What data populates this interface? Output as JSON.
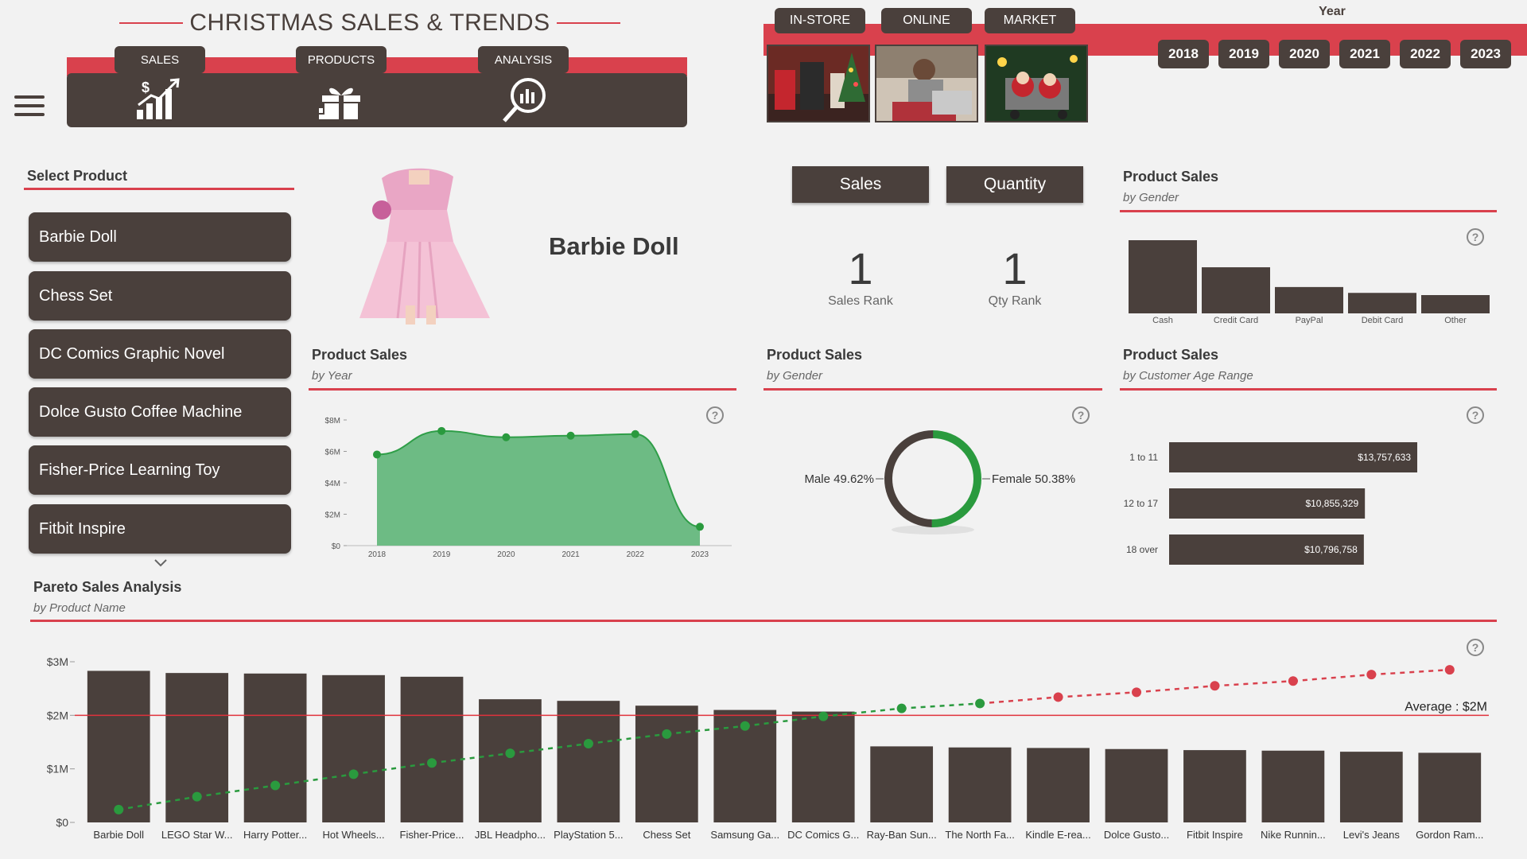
{
  "header": {
    "title": "CHRISTMAS SALES & TRENDS"
  },
  "nav": {
    "tabs": [
      "SALES",
      "PRODUCTS",
      "ANALYSIS"
    ]
  },
  "channels": {
    "tabs": [
      "IN-STORE",
      "ONLINE",
      "MARKET"
    ]
  },
  "year_filter": {
    "label": "Year",
    "years": [
      "2018",
      "2019",
      "2020",
      "2021",
      "2022",
      "2023"
    ]
  },
  "product_selector": {
    "title": "Select Product",
    "items": [
      "Barbie Doll",
      "Chess Set",
      "DC Comics Graphic Novel",
      "Dolce Gusto Coffee Machine",
      "Fisher-Price Learning Toy",
      "Fitbit Inspire"
    ]
  },
  "selected_product": {
    "name": "Barbie Doll"
  },
  "toggles": {
    "sales": "Sales",
    "quantity": "Quantity"
  },
  "kpis": {
    "sales_rank": {
      "value": "1",
      "label": "Sales Rank"
    },
    "qty_rank": {
      "value": "1",
      "label": "Qty Rank"
    }
  },
  "cards": {
    "payment": {
      "title": "Product Sales",
      "subtitle": "by Gender"
    },
    "year": {
      "title": "Product Sales",
      "subtitle": "by Year"
    },
    "gender": {
      "title": "Product Sales",
      "subtitle": "by Gender"
    },
    "age": {
      "title": "Product Sales",
      "subtitle": "by Customer Age Range"
    },
    "pareto": {
      "title": "Pareto Sales Analysis",
      "subtitle": "by Product Name"
    }
  },
  "help_glyph": "?",
  "chart_data": [
    {
      "id": "payment",
      "type": "bar",
      "categories": [
        "Cash",
        "Credit Card",
        "PayPal",
        "Debit Card",
        "Other"
      ],
      "values": [
        100,
        63,
        36,
        28,
        25
      ],
      "colors": {
        "bar": "#4a403c"
      }
    },
    {
      "id": "year",
      "type": "area",
      "x": [
        "2018",
        "2019",
        "2020",
        "2021",
        "2022",
        "2023"
      ],
      "values": [
        5.8,
        7.3,
        6.9,
        7.0,
        7.1,
        1.2
      ],
      "yticks": [
        "$0",
        "$2M",
        "$4M",
        "$6M",
        "$8M"
      ],
      "ylim": [
        0,
        8
      ],
      "colors": {
        "fill": "#6dbb84",
        "line": "#2f9e48",
        "point": "#2a9a3e"
      }
    },
    {
      "id": "gender",
      "type": "pie",
      "labels": [
        "Male 49.62%",
        "Female 50.38%"
      ],
      "values": [
        49.62,
        50.38
      ],
      "colors": {
        "male": "#4a403c",
        "female": "#2a9a3e"
      }
    },
    {
      "id": "age",
      "type": "bar",
      "categories": [
        "1 to 11",
        "12 to 17",
        "18 over"
      ],
      "values": [
        13757633,
        10855329,
        10796758
      ],
      "labels": [
        "$13,757,633",
        "$10,855,329",
        "$10,796,758"
      ],
      "colors": {
        "bar": "#4a403c"
      }
    },
    {
      "id": "pareto",
      "type": "bar",
      "categories": [
        "Barbie Doll",
        "LEGO Star W...",
        "Harry Potter...",
        "Hot Wheels...",
        "Fisher-Price...",
        "JBL Headpho...",
        "PlayStation 5...",
        "Chess Set",
        "Samsung Ga...",
        "DC Comics G...",
        "Ray-Ban Sun...",
        "The North Fa...",
        "Kindle E-rea...",
        "Dolce Gusto...",
        "Fitbit Inspire",
        "Nike Runnin...",
        "Levi's Jeans",
        "Gordon Ram..."
      ],
      "values": [
        2.83,
        2.79,
        2.78,
        2.75,
        2.72,
        2.3,
        2.27,
        2.18,
        2.1,
        2.07,
        1.42,
        1.4,
        1.39,
        1.37,
        1.35,
        1.34,
        1.32,
        1.3
      ],
      "cumulative_share": [
        0.08,
        0.16,
        0.23,
        0.3,
        0.37,
        0.43,
        0.49,
        0.55,
        0.6,
        0.66,
        0.71,
        0.74,
        0.78,
        0.81,
        0.85,
        0.88,
        0.92,
        0.95
      ],
      "cumulative_colors": [
        "#2a9a3e",
        "#2a9a3e",
        "#2a9a3e",
        "#2a9a3e",
        "#2a9a3e",
        "#2a9a3e",
        "#2a9a3e",
        "#2a9a3e",
        "#2a9a3e",
        "#2a9a3e",
        "#2a9a3e",
        "#2a9a3e",
        "#d9414d",
        "#d9414d",
        "#d9414d",
        "#d9414d",
        "#d9414d",
        "#d9414d"
      ],
      "yticks": [
        "$0",
        "$1M",
        "$2M",
        "$3M"
      ],
      "ylim": [
        0,
        3
      ],
      "average": 2.0,
      "average_label": "Average : $2M",
      "colors": {
        "bar": "#4a403c",
        "average_line": "#e0323c"
      }
    }
  ]
}
